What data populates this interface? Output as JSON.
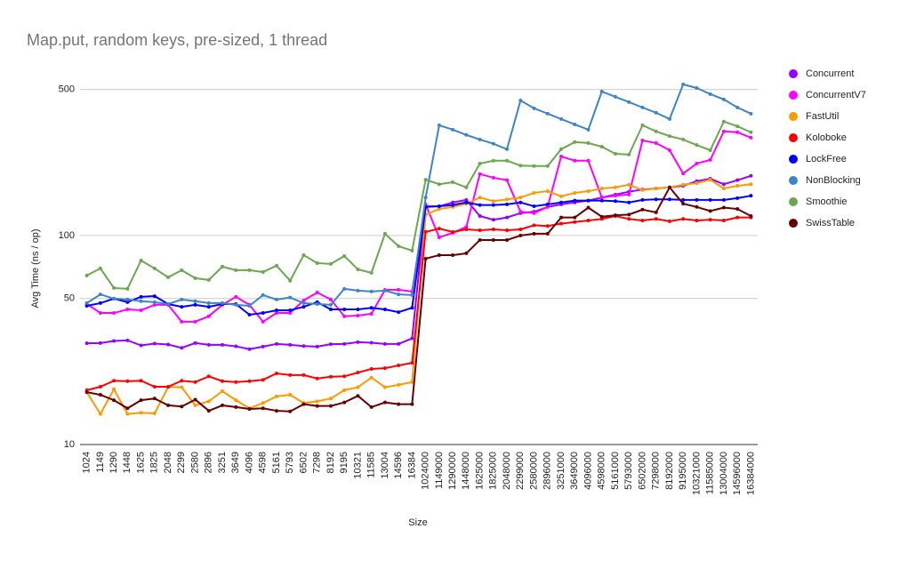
{
  "chart_data": {
    "type": "line",
    "title": "Map.put, random keys, pre-sized, 1 thread",
    "x_label": "Size",
    "y_label": "Avg Time (ns / op)",
    "log_scale": true,
    "grid": true,
    "legend": "right",
    "ylim": [
      10,
      600
    ],
    "yticks": [
      10,
      50,
      100,
      500
    ],
    "categories": [
      "1024",
      "1149",
      "1290",
      "1448",
      "1625",
      "1825",
      "2048",
      "2299",
      "2580",
      "2896",
      "3251",
      "3649",
      "4096",
      "4598",
      "5161",
      "5793",
      "6502",
      "7298",
      "8192",
      "9195",
      "10321",
      "11585",
      "13004",
      "14596",
      "16384",
      "1024000",
      "1149000",
      "1290000",
      "1448000",
      "1625000",
      "1825000",
      "2048000",
      "2299000",
      "2580000",
      "2896000",
      "3251000",
      "3649000",
      "4096000",
      "4598000",
      "5161000",
      "5793000",
      "6502000",
      "7298000",
      "8192000",
      "9195000",
      "10321000",
      "11585000",
      "13004000",
      "14596000",
      "16384000"
    ],
    "series": [
      {
        "name": "Concurrent",
        "color": "#9900ff",
        "values": [
          30.5,
          30.6,
          31.3,
          31.5,
          29.8,
          30.4,
          30.1,
          29.0,
          30.6,
          30,
          30,
          29.5,
          28.6,
          29.4,
          30.3,
          30,
          29.6,
          29.4,
          30.2,
          30.3,
          30.9,
          30.7,
          30.3,
          30.3,
          32.2,
          138,
          138,
          144,
          148,
          124,
          119,
          122,
          128,
          130,
          137,
          141,
          144,
          147,
          152,
          157,
          162,
          166,
          168,
          170,
          173,
          182,
          187,
          176,
          184,
          193
        ]
      },
      {
        "name": "ConcurrentV7",
        "color": "#ff00ff",
        "values": [
          47,
          42.6,
          42.6,
          44.3,
          43.9,
          46.6,
          46.6,
          38.7,
          38.7,
          41.1,
          46.6,
          50.9,
          46.6,
          38.7,
          42.6,
          42.6,
          48.9,
          53.4,
          49.4,
          41.1,
          41.4,
          42.2,
          55,
          55,
          54,
          141,
          98,
          103,
          110,
          197,
          189,
          184,
          130,
          128,
          137,
          239,
          228,
          228,
          152,
          155,
          157,
          285,
          277,
          256,
          198,
          221,
          230,
          315,
          312,
          294
        ]
      },
      {
        "name": "FastUtil",
        "color": "#ff9900",
        "values": [
          17.8,
          14,
          18.4,
          14,
          14.2,
          14.1,
          18.8,
          18.8,
          15.4,
          16.1,
          18,
          16.3,
          14.9,
          15.8,
          17,
          17.3,
          15.8,
          16.1,
          16.6,
          18.2,
          18.8,
          20.9,
          18.8,
          19.3,
          19.9,
          126,
          134,
          137,
          142,
          152,
          146,
          149,
          152,
          160,
          163,
          154,
          160,
          163,
          168,
          170,
          175,
          165,
          168,
          170,
          175,
          178,
          185,
          168,
          173,
          176
        ]
      },
      {
        "name": "Koloboke",
        "color": "#ff0000",
        "values": [
          18.2,
          18.9,
          20.2,
          20.1,
          20.2,
          18.9,
          18.9,
          20.2,
          19.9,
          21.2,
          20.1,
          19.9,
          20.1,
          20.4,
          21.9,
          21.5,
          21.5,
          20.7,
          21.1,
          21.2,
          22.1,
          23,
          23.2,
          23.9,
          24.6,
          104,
          108,
          104,
          107,
          106,
          107,
          106,
          107,
          112,
          111,
          114,
          116,
          118,
          120,
          124,
          120,
          118,
          120,
          117,
          120,
          118,
          119,
          118,
          122,
          122
        ]
      },
      {
        "name": "LockFree",
        "color": "#0000ff",
        "values": [
          46.1,
          47.5,
          49.9,
          48,
          50.9,
          51.3,
          47,
          45.6,
          46.6,
          45.6,
          47,
          47,
          41.8,
          42.6,
          43.9,
          43.9,
          45.6,
          48,
          44.3,
          44.3,
          44.3,
          45.1,
          44.3,
          43,
          45.1,
          137,
          138,
          140,
          144,
          140,
          140,
          141,
          144,
          138,
          141,
          144,
          147,
          147,
          147,
          146,
          144,
          148,
          149,
          149,
          148,
          148,
          148,
          148,
          151,
          155
        ]
      },
      {
        "name": "NonBlocking",
        "color": "#3d85c6",
        "values": [
          47.5,
          52.3,
          49.9,
          49.4,
          48.5,
          48,
          47,
          49.4,
          48.5,
          47.5,
          47.5,
          46.6,
          46.1,
          51.9,
          49.4,
          50.5,
          47.5,
          47,
          46.6,
          55.6,
          54.5,
          54,
          54.5,
          52.3,
          51.9,
          152,
          337,
          321,
          303,
          288,
          275,
          259,
          443,
          406,
          383,
          361,
          340,
          321,
          489,
          461,
          435,
          410,
          387,
          361,
          529,
          508,
          475,
          448,
          410,
          383
        ]
      },
      {
        "name": "Smoothie",
        "color": "#6aa84f",
        "values": [
          64.4,
          69.6,
          56.1,
          55.6,
          76,
          69.6,
          63.1,
          68.3,
          62.5,
          61.3,
          71,
          68.3,
          68.3,
          66.9,
          71.7,
          60.8,
          80.6,
          73.8,
          73.1,
          79.8,
          68.9,
          66.3,
          102,
          88.9,
          84.7,
          185,
          176,
          180,
          170,
          221,
          228,
          228,
          216,
          215,
          215,
          259,
          280,
          277,
          266,
          246,
          244,
          337,
          315,
          299,
          288,
          271,
          256,
          351,
          333,
          312
        ]
      },
      {
        "name": "SwissTable",
        "color": "#660000",
        "values": [
          17.8,
          17.3,
          16.3,
          14.9,
          16.3,
          16.6,
          15.4,
          15.2,
          16.4,
          14.5,
          15.4,
          15.1,
          14.8,
          14.9,
          14.5,
          14.4,
          15.6,
          15.3,
          15.3,
          15.9,
          17.1,
          15.1,
          15.9,
          15.6,
          15.6,
          77.5,
          80.6,
          80.6,
          82.2,
          95.2,
          95.2,
          95.2,
          100,
          102,
          102,
          122,
          122,
          136,
          123,
          125,
          126,
          133,
          129,
          170,
          142,
          137,
          131,
          136,
          134,
          124
        ]
      }
    ]
  }
}
